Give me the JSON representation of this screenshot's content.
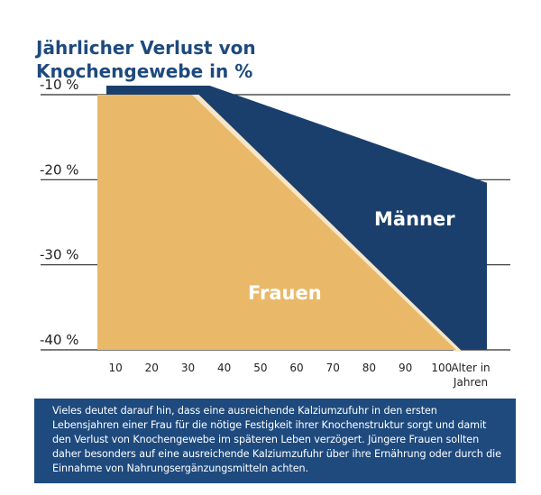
{
  "chart_data": {
    "type": "area",
    "title": "Jährlicher Verlust von Knochengewebe in %",
    "title_lines": [
      "Jährlicher Verlust von",
      "Knochengewebe in %"
    ],
    "xlabel": "Alter in Jahren",
    "xlabel_lines": [
      "Alter in",
      "Jahren"
    ],
    "x_ticks": [
      10,
      20,
      30,
      40,
      50,
      60,
      70,
      80,
      90,
      100
    ],
    "y_ticks": [
      -10,
      -20,
      -30,
      -40
    ],
    "y_tick_labels": [
      "-10 %",
      "-20 %",
      "-30 %",
      "-40 %"
    ],
    "xlim": [
      5,
      110
    ],
    "ylim": [
      -40,
      -10
    ],
    "series": [
      {
        "name": "Männer",
        "color": "#1b3f6c",
        "x": [
          5,
          35,
          110
        ],
        "y": [
          -10,
          -10,
          -21
        ]
      },
      {
        "name": "Frauen",
        "color": "#e9b969",
        "x": [
          5,
          31,
          104
        ],
        "y": [
          -10,
          -10,
          -40
        ]
      }
    ],
    "grid": true
  },
  "footnote": "Vieles deutet darauf hin, dass eine ausreichende Kalziumzufuhr in den ersten Lebensjahren einer Frau für die nötige Festigkeit ihrer Knochenstruktur sorgt und damit den Verlust von Knochengewebe im späteren Leben verzögert. Jüngere Frauen sollten daher besonders auf eine ausreichende Kalziumzufuhr über ihre Ernährung oder durch die Einnahme von Nahrungsergänzungsmitteln achten.",
  "colors": {
    "title": "#1e4a7e",
    "axis_text": "#222222",
    "grid": "#2b2b2b",
    "box": "#1e4a7e"
  }
}
